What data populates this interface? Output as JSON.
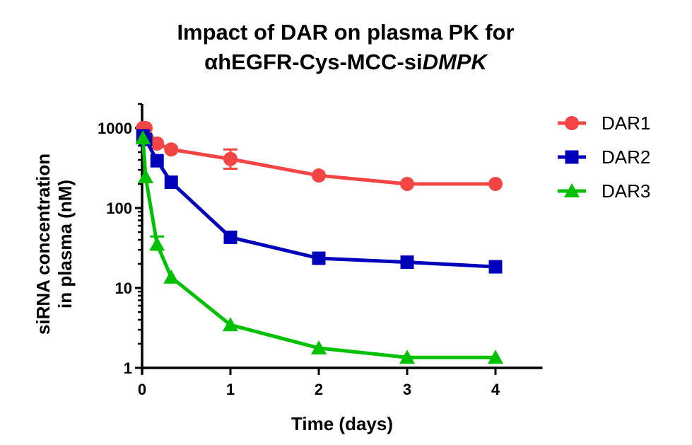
{
  "chart_data": {
    "type": "line",
    "title": [
      "Impact of DAR on plasma PK for",
      "αhEGFR-Cys-MCC-si",
      "DMPK"
    ],
    "title_line1": "Impact of DAR on plasma PK for",
    "title_line2_plain": "αhEGFR-Cys-MCC-si",
    "title_line2_italic": "DMPK",
    "xlabel": "Time (days)",
    "ylabel_lines": [
      "siRNA concentration",
      "in plasma (nM)"
    ],
    "xlim": [
      0,
      4.5
    ],
    "ylim": [
      1,
      2000
    ],
    "yscale": "log",
    "xticks": [
      0,
      1,
      2,
      3,
      4
    ],
    "xtick_labels": [
      "0",
      "1",
      "2",
      "3",
      "4"
    ],
    "yticks": [
      1,
      10,
      100,
      1000
    ],
    "ytick_labels": [
      "1",
      "10",
      "100",
      "1000"
    ],
    "grid": false,
    "legend_position": "right",
    "series": [
      {
        "name": "DAR1",
        "color": "#F44545",
        "marker": "circle",
        "x": [
          0.01,
          0.04,
          0.17,
          0.33,
          1,
          2,
          3,
          4
        ],
        "y": [
          1000,
          1000,
          640,
          540,
          410,
          255,
          200,
          200
        ],
        "error": [
          null,
          null,
          null,
          null,
          [
            310,
            540
          ],
          null,
          null,
          null
        ]
      },
      {
        "name": "DAR2",
        "color": "#0000BB",
        "marker": "square",
        "x": [
          0.01,
          0.04,
          0.17,
          0.33,
          1,
          2,
          3,
          4
        ],
        "y": [
          800,
          720,
          390,
          210,
          43,
          23.5,
          21,
          18.4
        ],
        "error": [
          null,
          null,
          null,
          null,
          null,
          null,
          null,
          null
        ]
      },
      {
        "name": "DAR3",
        "color": "#00C000",
        "marker": "triangle",
        "x": [
          0.01,
          0.04,
          0.17,
          0.33,
          1,
          2,
          3,
          4
        ],
        "y": [
          750,
          245,
          35,
          13.6,
          3.45,
          1.77,
          1.35,
          1.35
        ],
        "error": [
          null,
          null,
          [
            35,
            44
          ],
          null,
          null,
          null,
          null,
          null
        ]
      }
    ]
  }
}
